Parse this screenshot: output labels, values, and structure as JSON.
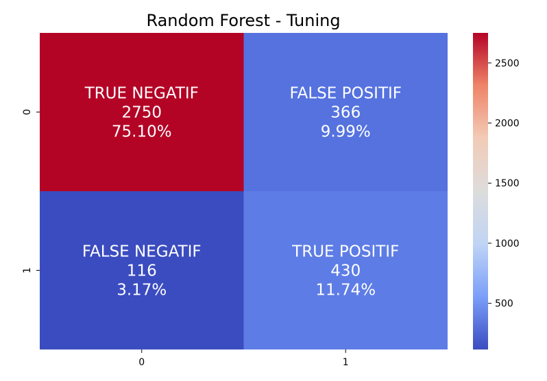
{
  "chart_data": {
    "type": "heatmap",
    "title": "Random Forest - Tuning",
    "xlabel": "",
    "ylabel": "",
    "x_categories": [
      "0",
      "1"
    ],
    "y_categories": [
      "0",
      "1"
    ],
    "cells": [
      {
        "row": 0,
        "col": 0,
        "label": "TRUE NEGATIF",
        "value": 2750,
        "percent": "75.10%",
        "color": "#b40426"
      },
      {
        "row": 0,
        "col": 1,
        "label": "FALSE POSITIF",
        "value": 366,
        "percent": "9.99%",
        "color": "#5572df"
      },
      {
        "row": 1,
        "col": 0,
        "label": "FALSE NEGATIF",
        "value": 116,
        "percent": "3.17%",
        "color": "#3b4cc0"
      },
      {
        "row": 1,
        "col": 1,
        "label": "TRUE POSITIF",
        "value": 430,
        "percent": "11.74%",
        "color": "#5d7ce6"
      }
    ],
    "colorbar": {
      "colormap": "coolwarm",
      "min": 116,
      "max": 2750,
      "ticks": [
        500,
        1000,
        1500,
        2000,
        2500
      ],
      "tick_labels": [
        "500",
        "1000",
        "1500",
        "2000",
        "2500"
      ],
      "colors": [
        "#3b4cc0",
        "#7b9ff9",
        "#c0d4f5",
        "#dddcdc",
        "#f2cbb7",
        "#ee8468",
        "#b40426"
      ]
    }
  }
}
